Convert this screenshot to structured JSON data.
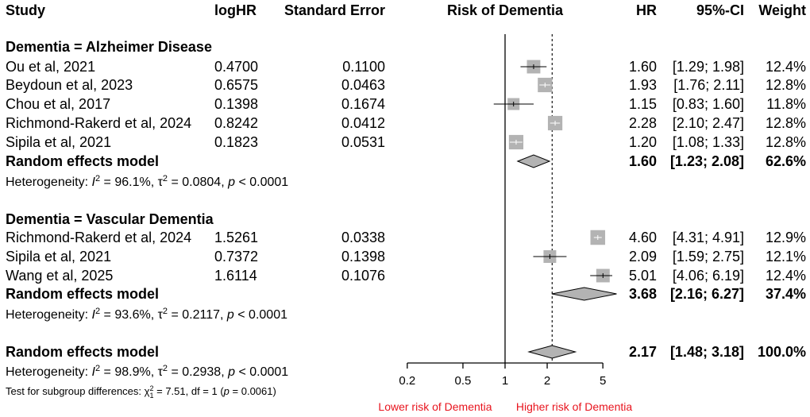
{
  "chart_data": {
    "type": "forest",
    "title": "Risk of Dementia",
    "headers": {
      "study": "Study",
      "loghr": "logHR",
      "se": "Standard Error",
      "plot": "Risk of Dementia",
      "hr": "HR",
      "ci": "95%-CI",
      "weight": "Weight"
    },
    "x_axis": {
      "scale": "log",
      "ticks": [
        0.2,
        0.5,
        1,
        2,
        5
      ],
      "tick_labels": [
        "0.2",
        "0.5",
        "1",
        "2",
        "5"
      ],
      "range": [
        0.2,
        5
      ],
      "reference_line": 1,
      "pooled_line": 2.17,
      "left_label": "Lower risk of Dementia",
      "right_label": "Higher risk of Dementia",
      "label_color": "#e8141e"
    },
    "groups": [
      {
        "label": "Dementia = Alzheimer Disease",
        "studies": [
          {
            "study": "Ou et al, 2021",
            "loghr": "0.4700",
            "se": "0.1100",
            "hr": 1.6,
            "lo": 1.29,
            "hi": 1.98,
            "hr_text": "1.60",
            "ci_text": "[1.29; 1.98]",
            "weight_text": "12.4%",
            "weight": 12.4
          },
          {
            "study": "Beydoun et al, 2023",
            "loghr": "0.6575",
            "se": "0.0463",
            "hr": 1.93,
            "lo": 1.76,
            "hi": 2.11,
            "hr_text": "1.93",
            "ci_text": "[1.76; 2.11]",
            "weight_text": "12.8%",
            "weight": 12.8
          },
          {
            "study": "Chou et al, 2017",
            "loghr": "0.1398",
            "se": "0.1674",
            "hr": 1.15,
            "lo": 0.83,
            "hi": 1.6,
            "hr_text": "1.15",
            "ci_text": "[0.83; 1.60]",
            "weight_text": "11.8%",
            "weight": 11.8
          },
          {
            "study": "Richmond-Rakerd et al, 2024",
            "loghr": "0.8242",
            "se": "0.0412",
            "hr": 2.28,
            "lo": 2.1,
            "hi": 2.47,
            "hr_text": "2.28",
            "ci_text": "[2.10; 2.47]",
            "weight_text": "12.8%",
            "weight": 12.8
          },
          {
            "study": "Sipila et al, 2021",
            "loghr": "0.1823",
            "se": "0.0531",
            "hr": 1.2,
            "lo": 1.08,
            "hi": 1.33,
            "hr_text": "1.20",
            "ci_text": "[1.08; 1.33]",
            "weight_text": "12.8%",
            "weight": 12.8
          }
        ],
        "model": {
          "label": "Random effects model",
          "hr": 1.6,
          "lo": 1.23,
          "hi": 2.08,
          "hr_text": "1.60",
          "ci_text": "[1.23; 2.08]",
          "weight_text": "62.6%"
        },
        "heterogeneity": {
          "prefix": "Heterogeneity: ",
          "i2": "96.1%",
          "tau2": "0.0804",
          "p": "0.0001"
        }
      },
      {
        "label": "Dementia = Vascular Dementia",
        "studies": [
          {
            "study": "Richmond-Rakerd et al, 2024",
            "loghr": "1.5261",
            "se": "0.0338",
            "hr": 4.6,
            "lo": 4.31,
            "hi": 4.91,
            "hr_text": "4.60",
            "ci_text": "[4.31; 4.91]",
            "weight_text": "12.9%",
            "weight": 12.9
          },
          {
            "study": "Sipila et al, 2021",
            "loghr": "0.7372",
            "se": "0.1398",
            "hr": 2.09,
            "lo": 1.59,
            "hi": 2.75,
            "hr_text": "2.09",
            "ci_text": "[1.59; 2.75]",
            "weight_text": "12.1%",
            "weight": 12.1
          },
          {
            "study": "Wang et al, 2025",
            "loghr": "1.6114",
            "se": "0.1076",
            "hr": 5.01,
            "lo": 4.06,
            "hi": 6.19,
            "hr_text": "5.01",
            "ci_text": "[4.06; 6.19]",
            "weight_text": "12.4%",
            "weight": 12.4
          }
        ],
        "model": {
          "label": "Random effects model",
          "hr": 3.68,
          "lo": 2.16,
          "hi": 6.27,
          "hr_text": "3.68",
          "ci_text": "[2.16; 6.27]",
          "weight_text": "37.4%"
        },
        "heterogeneity": {
          "prefix": "Heterogeneity: ",
          "i2": "93.6%",
          "tau2": "0.2117",
          "p": "0.0001"
        }
      }
    ],
    "overall": {
      "model": {
        "label": "Random effects model",
        "hr": 2.17,
        "lo": 1.48,
        "hi": 3.18,
        "hr_text": "2.17",
        "ci_text": "[1.48; 3.18]",
        "weight_text": "100.0%"
      },
      "heterogeneity": {
        "prefix": "Heterogeneity: ",
        "i2": "98.9%",
        "tau2": "0.2938",
        "p": "0.0001"
      },
      "subgroup_test": {
        "prefix": "Test for subgroup differences: ",
        "chi2": "7.51",
        "df": "df = 1",
        "p": "0.0061"
      }
    },
    "colors": {
      "square": "#b3b3b3",
      "diamond": "#b3b3b3",
      "line": "#000000"
    }
  }
}
